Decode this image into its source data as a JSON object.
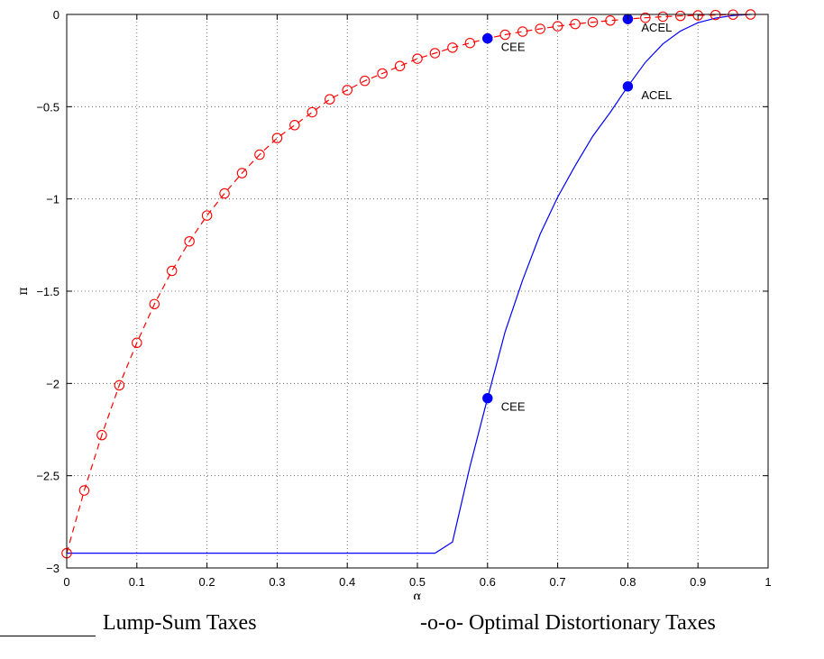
{
  "chart_data": {
    "type": "line",
    "xlabel": "α",
    "ylabel": "π",
    "xlim": [
      0,
      1
    ],
    "ylim": [
      -3,
      0
    ],
    "grid": true,
    "x_ticks": [
      0,
      0.1,
      0.2,
      0.3,
      0.4,
      0.5,
      0.6,
      0.7,
      0.8,
      0.9,
      1
    ],
    "x_tick_labels": [
      "0",
      "0.1",
      "0.2",
      "0.3",
      "0.4",
      "0.5",
      "0.6",
      "0.7",
      "0.8",
      "0.9",
      "1"
    ],
    "y_ticks": [
      0,
      -0.5,
      -1,
      -1.5,
      -2,
      -2.5,
      -3
    ],
    "y_tick_labels": [
      "0",
      "−0.5",
      "−1",
      "−1.5",
      "−2",
      "−2.5",
      "−3"
    ],
    "series": [
      {
        "name": "Lump-Sum Taxes",
        "color": "#0000ff",
        "style": "solid",
        "marker": "none",
        "x": [
          0,
          0.1,
          0.2,
          0.3,
          0.4,
          0.5,
          0.525,
          0.55,
          0.575,
          0.6,
          0.625,
          0.65,
          0.675,
          0.7,
          0.725,
          0.75,
          0.775,
          0.8,
          0.825,
          0.85,
          0.875,
          0.9,
          0.925,
          0.95,
          0.975
        ],
        "y": [
          -2.92,
          -2.92,
          -2.92,
          -2.92,
          -2.92,
          -2.92,
          -2.92,
          -2.86,
          -2.45,
          -2.08,
          -1.72,
          -1.44,
          -1.19,
          -0.99,
          -0.82,
          -0.66,
          -0.53,
          -0.39,
          -0.26,
          -0.16,
          -0.09,
          -0.045,
          -0.02,
          -0.006,
          0
        ]
      },
      {
        "name": "Optimal Distortionary Taxes",
        "color": "#ff0000",
        "style": "dashed",
        "marker": "circle",
        "x": [
          0,
          0.025,
          0.05,
          0.075,
          0.1,
          0.125,
          0.15,
          0.175,
          0.2,
          0.225,
          0.25,
          0.275,
          0.3,
          0.325,
          0.35,
          0.375,
          0.4,
          0.425,
          0.45,
          0.475,
          0.5,
          0.525,
          0.55,
          0.575,
          0.6,
          0.625,
          0.65,
          0.675,
          0.7,
          0.725,
          0.75,
          0.775,
          0.8,
          0.825,
          0.85,
          0.875,
          0.9,
          0.925,
          0.95,
          0.975
        ],
        "y": [
          -2.92,
          -2.58,
          -2.28,
          -2.01,
          -1.78,
          -1.57,
          -1.39,
          -1.23,
          -1.09,
          -0.97,
          -0.86,
          -0.76,
          -0.67,
          -0.6,
          -0.53,
          -0.46,
          -0.41,
          -0.36,
          -0.32,
          -0.28,
          -0.24,
          -0.21,
          -0.18,
          -0.155,
          -0.13,
          -0.11,
          -0.093,
          -0.078,
          -0.064,
          -0.052,
          -0.042,
          -0.033,
          -0.025,
          -0.018,
          -0.012,
          -0.008,
          -0.005,
          -0.003,
          -0.001,
          0
        ]
      }
    ],
    "annotations": [
      {
        "label": "CEE",
        "x": 0.6,
        "y": -2.08,
        "color": "#0000ff"
      },
      {
        "label": "ACEL",
        "x": 0.8,
        "y": -0.39,
        "color": "#0000ff"
      },
      {
        "label": "CEE",
        "x": 0.6,
        "y": -0.13,
        "color": "#0000ff"
      },
      {
        "label": "ACEL",
        "x": 0.8,
        "y": -0.025,
        "color": "#0000ff"
      }
    ]
  },
  "legend": {
    "lump_sum": "Lump-Sum Taxes",
    "distortionary": "-o-o- Optimal Distortionary Taxes"
  }
}
